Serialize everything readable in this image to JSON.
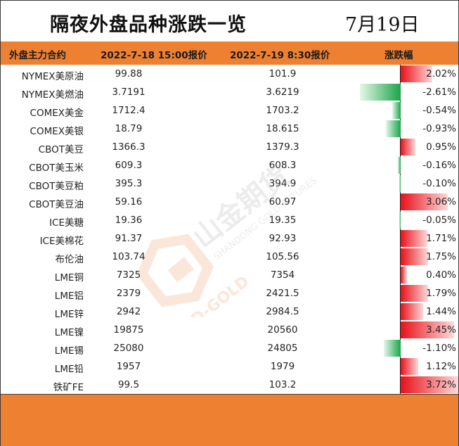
{
  "title": "隔夜外盘品种涨跌一览",
  "date": "7月19日",
  "columns": {
    "contract": "外盘主力合约",
    "price1": "2022-7-18 15:00报价",
    "price2": "2022-7-19 8:30报价",
    "change": "涨跌幅"
  },
  "rows": [
    {
      "name": "NYMEX美原油",
      "p1": "99.88",
      "p2": "101.9",
      "pct": "2.02%",
      "value": 2.02
    },
    {
      "name": "NYMEX美燃油",
      "p1": "3.7191",
      "p2": "3.6219",
      "pct": "-2.61%",
      "value": -2.61
    },
    {
      "name": "COMEX美金",
      "p1": "1712.4",
      "p2": "1703.2",
      "pct": "-0.54%",
      "value": -0.54
    },
    {
      "name": "COMEX美银",
      "p1": "18.79",
      "p2": "18.615",
      "pct": "-0.93%",
      "value": -0.93
    },
    {
      "name": "CBOT美豆",
      "p1": "1366.3",
      "p2": "1379.3",
      "pct": "0.95%",
      "value": 0.95
    },
    {
      "name": "CBOT美玉米",
      "p1": "609.3",
      "p2": "608.3",
      "pct": "-0.16%",
      "value": -0.16
    },
    {
      "name": "CBOT美豆粕",
      "p1": "395.3",
      "p2": "394.9",
      "pct": "-0.10%",
      "value": -0.1
    },
    {
      "name": "CBOT美豆油",
      "p1": "59.16",
      "p2": "60.97",
      "pct": "3.06%",
      "value": 3.06
    },
    {
      "name": "ICE美糖",
      "p1": "19.36",
      "p2": "19.35",
      "pct": "-0.05%",
      "value": -0.05
    },
    {
      "name": "ICE美棉花",
      "p1": "91.37",
      "p2": "92.93",
      "pct": "1.71%",
      "value": 1.71
    },
    {
      "name": "布伦油",
      "p1": "103.74",
      "p2": "105.56",
      "pct": "1.75%",
      "value": 1.75
    },
    {
      "name": "LME铜",
      "p1": "7325",
      "p2": "7354",
      "pct": "0.40%",
      "value": 0.4
    },
    {
      "name": "LME铝",
      "p1": "2379",
      "p2": "2421.5",
      "pct": "1.79%",
      "value": 1.79
    },
    {
      "name": "LME锌",
      "p1": "2942",
      "p2": "2984.5",
      "pct": "1.44%",
      "value": 1.44
    },
    {
      "name": "LME镍",
      "p1": "19875",
      "p2": "20560",
      "pct": "3.45%",
      "value": 3.45
    },
    {
      "name": "LME锡",
      "p1": "25080",
      "p2": "24805",
      "pct": "-1.10%",
      "value": -1.1
    },
    {
      "name": "LME铅",
      "p1": "1957",
      "p2": "1979",
      "pct": "1.12%",
      "value": 1.12
    },
    {
      "name": "铁矿FE",
      "p1": "99.5",
      "p2": "103.2",
      "pct": "3.72%",
      "value": 3.72
    }
  ],
  "watermark": {
    "brand_cn": "山金期货",
    "brand_en": "SHANDONG GOLD FUTURES",
    "logo_text": "SD-GOLD",
    "color": "#ee8032"
  },
  "colors": {
    "accent": "#ee8032",
    "positive": "#e8101a",
    "negative": "#1aa54a"
  }
}
